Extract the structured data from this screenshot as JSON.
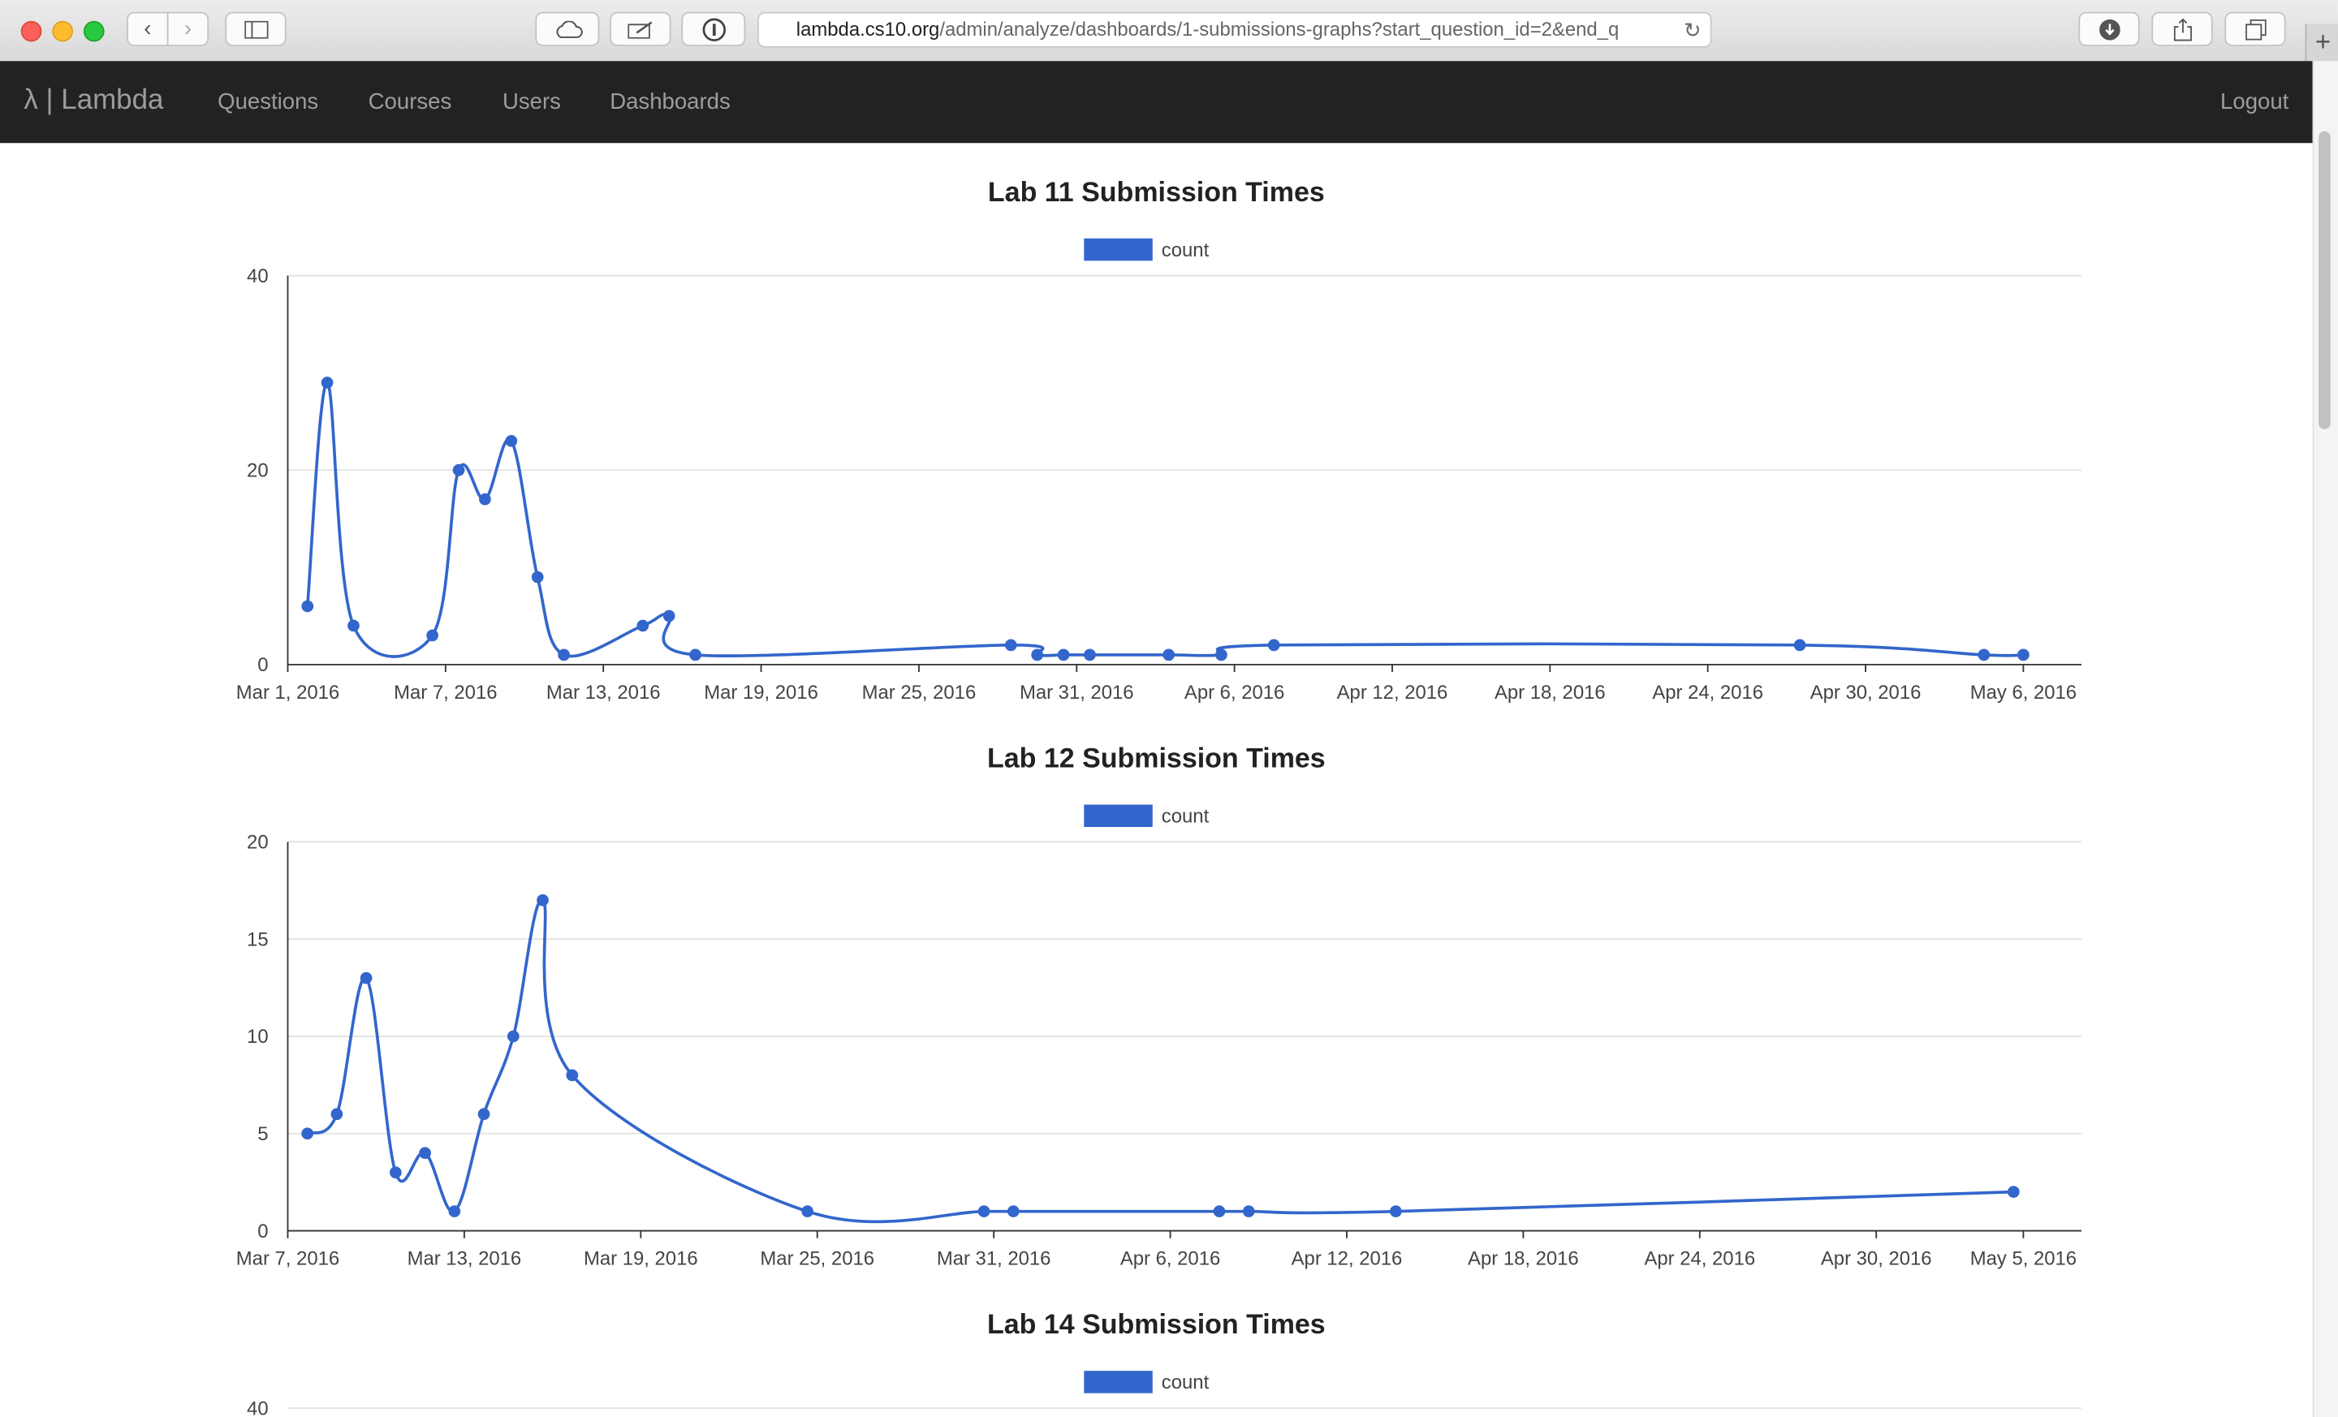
{
  "browser": {
    "url_host": "lambda.cs10.org",
    "url_path": "/admin/analyze/dashboards/1-submissions-graphs?start_question_id=2&end_q"
  },
  "navbar": {
    "brand": "λ | Lambda",
    "links": [
      "Questions",
      "Courses",
      "Users",
      "Dashboards"
    ],
    "logout": "Logout"
  },
  "colors": {
    "series": "#3366cc",
    "navbar_bg": "#222222",
    "navbar_text": "#9d9d9d"
  },
  "chart_data": [
    {
      "type": "line",
      "title": "Lab 11 Submission Times",
      "series": [
        {
          "name": "count",
          "points": [
            [
              "2016-03-01 18:00",
              6
            ],
            [
              "2016-03-02 12:00",
              29
            ],
            [
              "2016-03-03 12:00",
              4
            ],
            [
              "2016-03-06 12:00",
              3
            ],
            [
              "2016-03-07 12:00",
              20
            ],
            [
              "2016-03-08 12:00",
              17
            ],
            [
              "2016-03-09 12:00",
              23
            ],
            [
              "2016-03-10 12:00",
              9
            ],
            [
              "2016-03-11 12:00",
              1
            ],
            [
              "2016-03-14 12:00",
              4
            ],
            [
              "2016-03-15 12:00",
              5
            ],
            [
              "2016-03-16 12:00",
              1
            ],
            [
              "2016-03-28 12:00",
              2
            ],
            [
              "2016-03-29 12:00",
              1
            ],
            [
              "2016-03-30 12:00",
              1
            ],
            [
              "2016-03-31 12:00",
              1
            ],
            [
              "2016-04-03 12:00",
              1
            ],
            [
              "2016-04-05 12:00",
              1
            ],
            [
              "2016-04-07 12:00",
              2
            ],
            [
              "2016-04-27 12:00",
              2
            ],
            [
              "2016-05-04 12:00",
              1
            ],
            [
              "2016-05-06 00:00",
              1
            ]
          ]
        }
      ],
      "x_ticks": [
        "Mar 1, 2016",
        "Mar 7, 2016",
        "Mar 13, 2016",
        "Mar 19, 2016",
        "Mar 25, 2016",
        "Mar 31, 2016",
        "Apr 6, 2016",
        "Apr 12, 2016",
        "Apr 18, 2016",
        "Apr 24, 2016",
        "Apr 30, 2016",
        "May 6, 2016"
      ],
      "x_range": [
        "2016-03-01",
        "2016-05-06"
      ],
      "y_ticks": [
        "0",
        "20",
        "40"
      ],
      "ylim": [
        0,
        40
      ],
      "legend": "top-center",
      "grid": true
    },
    {
      "type": "line",
      "title": "Lab 12 Submission Times",
      "series": [
        {
          "name": "count",
          "points": [
            [
              "2016-03-07 16:00",
              5
            ],
            [
              "2016-03-08 16:00",
              6
            ],
            [
              "2016-03-09 16:00",
              13
            ],
            [
              "2016-03-10 16:00",
              3
            ],
            [
              "2016-03-11 16:00",
              4
            ],
            [
              "2016-03-12 16:00",
              1
            ],
            [
              "2016-03-13 16:00",
              6
            ],
            [
              "2016-03-14 16:00",
              10
            ],
            [
              "2016-03-15 16:00",
              17
            ],
            [
              "2016-03-16 16:00",
              8
            ],
            [
              "2016-03-24 16:00",
              1
            ],
            [
              "2016-03-30 16:00",
              1
            ],
            [
              "2016-03-31 16:00",
              1
            ],
            [
              "2016-04-07 16:00",
              1
            ],
            [
              "2016-04-08 16:00",
              1
            ],
            [
              "2016-04-13 16:00",
              1
            ],
            [
              "2016-05-04 16:00",
              2
            ]
          ]
        }
      ],
      "x_ticks": [
        "Mar 7, 2016",
        "Mar 13, 2016",
        "Mar 19, 2016",
        "Mar 25, 2016",
        "Mar 31, 2016",
        "Apr 6, 2016",
        "Apr 12, 2016",
        "Apr 18, 2016",
        "Apr 24, 2016",
        "Apr 30, 2016",
        "May 5, 2016"
      ],
      "x_range": [
        "2016-03-07",
        "2016-05-05"
      ],
      "y_ticks": [
        "0",
        "5",
        "10",
        "15",
        "20"
      ],
      "ylim": [
        0,
        20
      ],
      "legend": "top-center",
      "grid": true
    },
    {
      "type": "line",
      "title": "Lab 14 Submission Times",
      "series": [
        {
          "name": "count",
          "points": []
        }
      ],
      "y_ticks": [
        "40"
      ],
      "ylim": [
        0,
        40
      ],
      "legend": "top-center",
      "grid": true
    }
  ]
}
